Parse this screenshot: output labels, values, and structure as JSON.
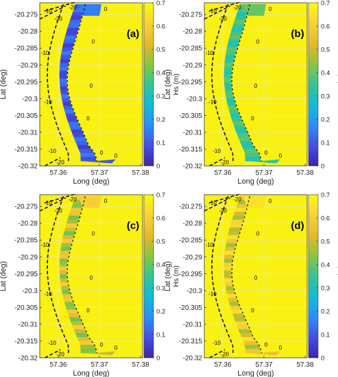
{
  "colors": {
    "background": "#ffffff",
    "map_fill": "#f9f113",
    "contour": "#111111",
    "axis": "#333333",
    "grid": "#e6e6e6",
    "colormap_stops": [
      "#3e26a8",
      "#4450e6",
      "#2d8ffb",
      "#13bcd2",
      "#31c594",
      "#8dc53b",
      "#e6b92a",
      "#fbd238",
      "#f9fb0e"
    ]
  },
  "axes": {
    "xlabel": "Long (deg)",
    "ylabel": "Lat (deg)",
    "colorbar_label": "Hs (m)",
    "x_ticks": [
      "57.36",
      "57.37",
      "57.38"
    ],
    "y_ticks": [
      "-20.275",
      "-20.28",
      "-20.285",
      "-20.29",
      "-20.295",
      "-20.3",
      "-20.305",
      "-20.31",
      "-20.315",
      "-20.32"
    ],
    "colorbar_ticks": [
      "0",
      "0.1",
      "0.2",
      "0.3",
      "0.4",
      "0.5",
      "0.6",
      "0.7"
    ]
  },
  "chart_data": [
    {
      "type": "heatmap",
      "panel_label": "(a)",
      "xlabel": "Long (deg)",
      "ylabel": "Lat (deg)",
      "xlim": [
        57.3555,
        57.3805
      ],
      "ylim": [
        -20.32,
        -20.2715
      ],
      "clim": [
        0,
        0.7
      ],
      "colorbar_label": "Hs (m)",
      "contour_labels": [
        "-10",
        "-20",
        "-30",
        "-10",
        "-10",
        "-10",
        "-20",
        "0",
        "0",
        "0",
        "0",
        "0",
        "0"
      ],
      "lagoon_hs_range": [
        0.05,
        0.15
      ],
      "offshore_hs": 0.7
    },
    {
      "type": "heatmap",
      "panel_label": "(b)",
      "xlabel": "Long (deg)",
      "ylabel": "Lat (deg)",
      "xlim": [
        57.3555,
        57.3805
      ],
      "ylim": [
        -20.32,
        -20.2715
      ],
      "clim": [
        0,
        0.7
      ],
      "colorbar_label": "Hs (m)",
      "contour_labels": [
        "-10",
        "-20",
        "-30",
        "-10",
        "-10",
        "-10",
        "-20",
        "0",
        "0",
        "0",
        "0",
        "0",
        "0"
      ],
      "lagoon_hs_range": [
        0.3,
        0.4
      ],
      "offshore_hs": 0.7
    },
    {
      "type": "heatmap",
      "panel_label": "(c)",
      "xlabel": "Long (deg)",
      "ylabel": "Lat (deg)",
      "xlim": [
        57.3555,
        57.3805
      ],
      "ylim": [
        -20.32,
        -20.2715
      ],
      "clim": [
        0,
        0.7
      ],
      "colorbar_label": "Hs (m)",
      "contour_labels": [
        "-10",
        "-20",
        "-30",
        "-10",
        "-10",
        "-10",
        "-20",
        "0",
        "0",
        "0",
        "0",
        "0",
        "0"
      ],
      "lagoon_hs_range": [
        0.4,
        0.6
      ],
      "offshore_hs": 0.7
    },
    {
      "type": "heatmap",
      "panel_label": "(d)",
      "xlabel": "Long (deg)",
      "ylabel": "Lat (deg)",
      "xlim": [
        57.3555,
        57.3805
      ],
      "ylim": [
        -20.32,
        -20.2715
      ],
      "clim": [
        0,
        0.7
      ],
      "colorbar_label": "Hs (m)",
      "contour_labels": [
        "-10",
        "-20",
        "-30",
        "-10",
        "-10",
        "-10",
        "-20",
        "0",
        "0",
        "0",
        "0",
        "0",
        "0"
      ],
      "lagoon_hs_range": [
        0.45,
        0.65
      ],
      "offshore_hs": 0.7
    }
  ]
}
